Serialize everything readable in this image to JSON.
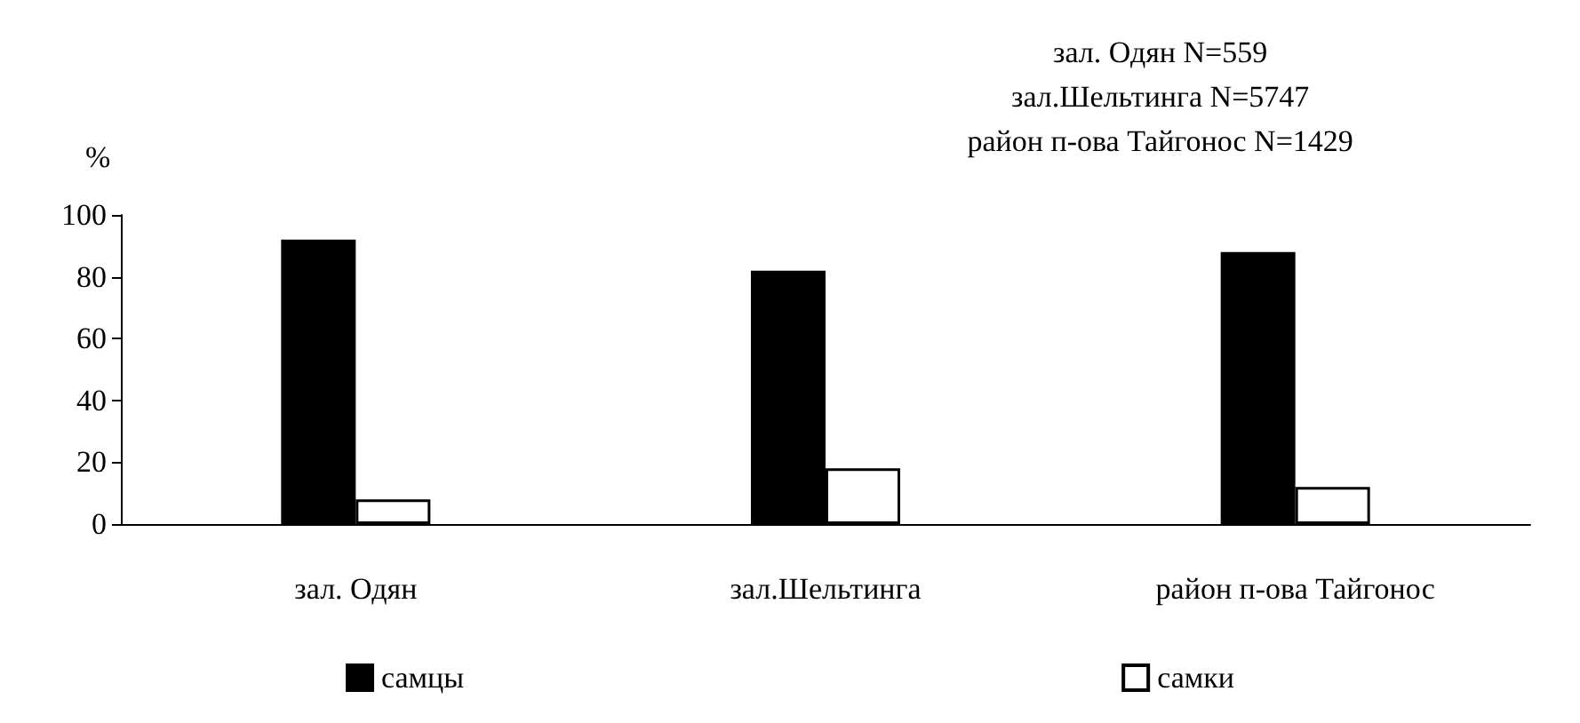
{
  "chart_data": {
    "type": "bar",
    "ylabel": "%",
    "categories": [
      "зал. Одян",
      "зал.Шельтинга",
      "район п-ова Тайгонос"
    ],
    "series": [
      {
        "name": "самцы",
        "color": "#000000",
        "values": [
          92,
          82,
          88
        ]
      },
      {
        "name": "самки",
        "color": "#ffffff",
        "values": [
          8,
          18,
          12
        ]
      }
    ],
    "ylim": [
      0,
      100
    ],
    "yticks": [
      0,
      20,
      40,
      60,
      80,
      100
    ],
    "grid": false,
    "legend": "bottom",
    "annotations": [
      "зал. Одян N=559",
      "зал.Шельтинга N=5747",
      "район п-ова Тайгонос N=1429"
    ]
  }
}
